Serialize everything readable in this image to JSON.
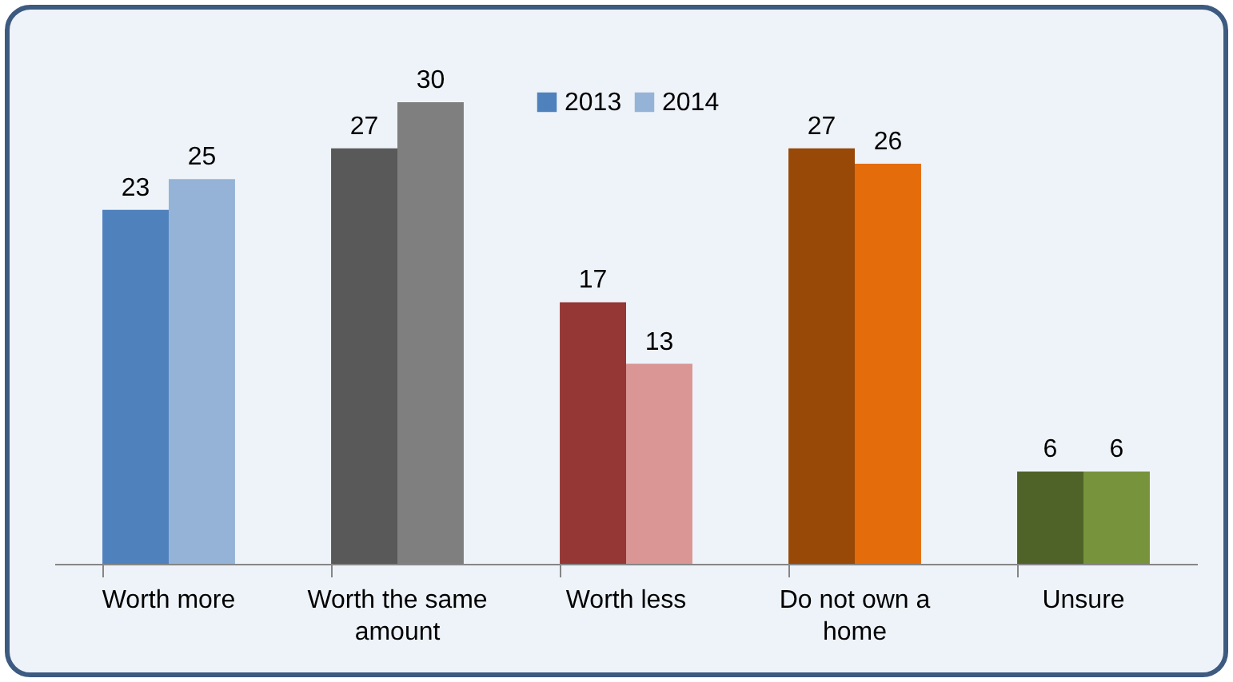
{
  "chart_data": {
    "type": "bar",
    "categories": [
      "Worth more",
      "Worth the same amount",
      "Worth less",
      "Do not own a home",
      "Unsure"
    ],
    "series": [
      {
        "name": "2013",
        "color": "#4f81bd",
        "colors": [
          "#4f81bd",
          "#595959",
          "#953735",
          "#984807",
          "#4f6228"
        ],
        "values": [
          23,
          27,
          17,
          27,
          6
        ]
      },
      {
        "name": "2014",
        "color": "#95b3d7",
        "colors": [
          "#95b3d7",
          "#7f7f7f",
          "#d99694",
          "#e46c0a",
          "#77933c"
        ],
        "values": [
          25,
          30,
          13,
          26,
          6
        ]
      }
    ],
    "data_labels": true,
    "legend": "top"
  }
}
